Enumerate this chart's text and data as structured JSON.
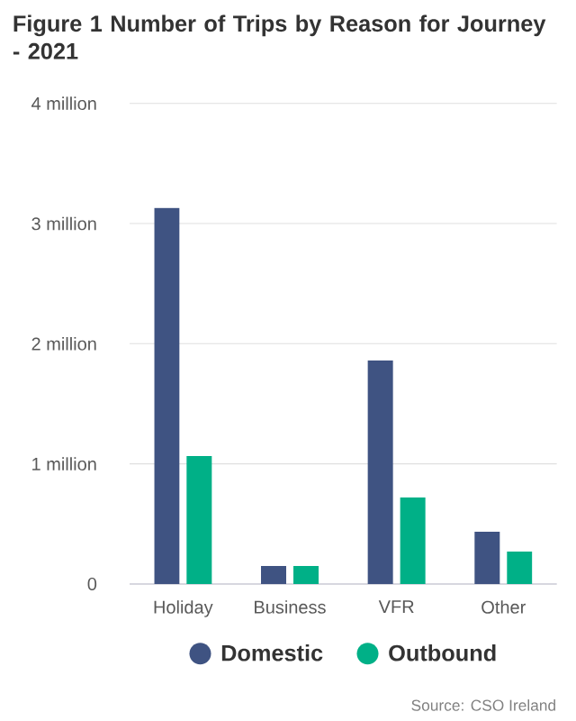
{
  "chart_data": {
    "type": "bar",
    "title": "Figure 1 Number of Trips by Reason for Journey - 2021",
    "categories": [
      "Holiday",
      "Business",
      "VFR",
      "Other"
    ],
    "series": [
      {
        "name": "Domestic",
        "color": "#3f5382",
        "values": [
          3130000,
          150000,
          1860000,
          435000
        ]
      },
      {
        "name": "Outbound",
        "color": "#00b087",
        "values": [
          1065000,
          150000,
          720000,
          270000
        ]
      }
    ],
    "ylim": [
      0,
      4000000
    ],
    "yticks": [
      0,
      {
        "value": 1000000,
        "label": "1 million"
      },
      {
        "value": 2000000,
        "label": "2 million"
      },
      {
        "value": 3000000,
        "label": "3 million"
      },
      {
        "value": 4000000,
        "label": "4 million"
      }
    ],
    "grid": "y",
    "legend": "bottom",
    "annotations": [
      "Source: CSO Ireland"
    ]
  }
}
